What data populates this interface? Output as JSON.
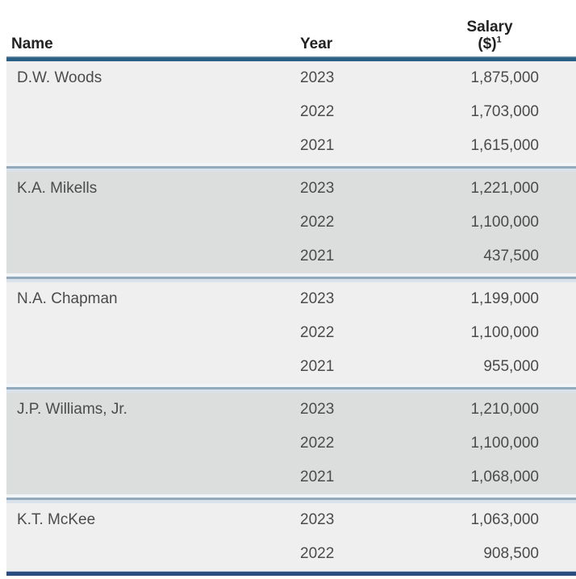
{
  "table": {
    "header": {
      "name": "Name",
      "year": "Year",
      "salary_line1": "Salary",
      "salary_line2": "($)",
      "salary_footnote_marker": "1"
    },
    "rows": [
      {
        "name": "D.W. Woods",
        "entries": [
          {
            "year": "2023",
            "salary": "1,875,000"
          },
          {
            "year": "2022",
            "salary": "1,703,000"
          },
          {
            "year": "2021",
            "salary": "1,615,000"
          }
        ]
      },
      {
        "name": "K.A. Mikells",
        "entries": [
          {
            "year": "2023",
            "salary": "1,221,000"
          },
          {
            "year": "2022",
            "salary": "1,100,000"
          },
          {
            "year": "2021",
            "salary": "437,500"
          }
        ]
      },
      {
        "name": "N.A. Chapman",
        "entries": [
          {
            "year": "2023",
            "salary": "1,199,000"
          },
          {
            "year": "2022",
            "salary": "1,100,000"
          },
          {
            "year": "2021",
            "salary": "955,000"
          }
        ]
      },
      {
        "name": "J.P. Williams, Jr.",
        "entries": [
          {
            "year": "2023",
            "salary": "1,210,000"
          },
          {
            "year": "2022",
            "salary": "1,100,000"
          },
          {
            "year": "2021",
            "salary": "1,068,000"
          }
        ]
      },
      {
        "name": "K.T. McKee",
        "entries": [
          {
            "year": "2023",
            "salary": "1,063,000"
          },
          {
            "year": "2022",
            "salary": "908,500"
          }
        ]
      }
    ]
  },
  "colors": {
    "header_rule_blue": "#2c6186",
    "section_divider_blue": "#93a9bc",
    "bottom_border_navy": "#2b4c7e",
    "row_background_light": "#efefef",
    "row_background_dark": "#dcdddd",
    "header_text": "#222222",
    "body_text": "#4b4b4b",
    "page_background": "#ffffff"
  }
}
